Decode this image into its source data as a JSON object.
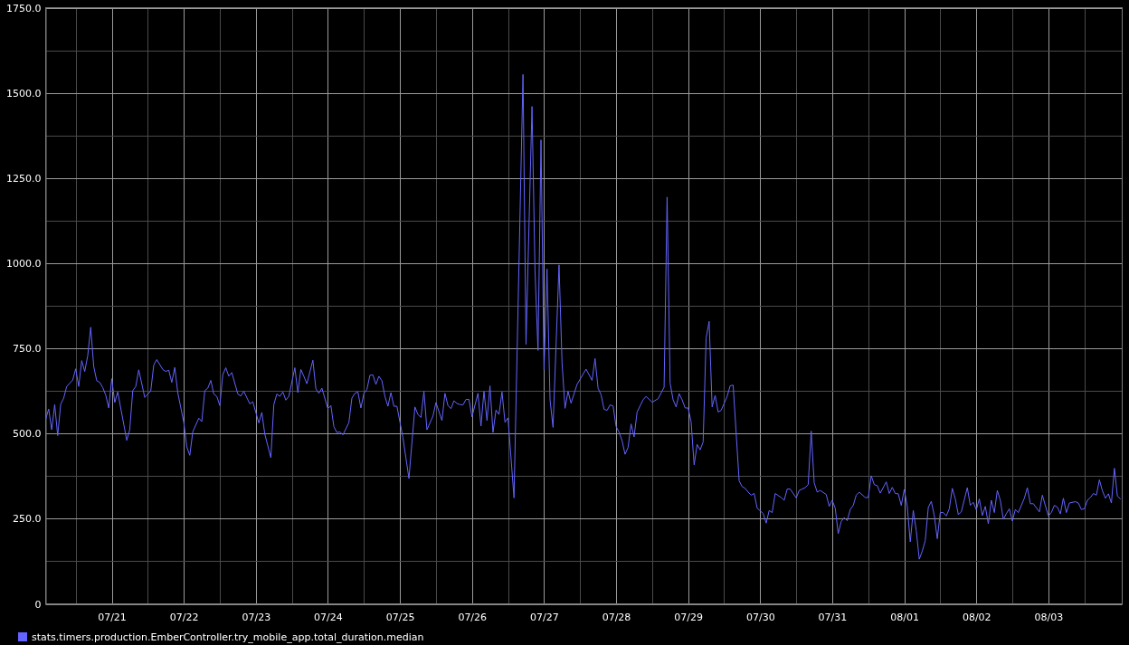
{
  "chart_data": {
    "type": "line",
    "x": [
      "--07-20T02:00",
      "--07-20T03:00",
      "--07-20T04:00",
      "--07-20T05:00",
      "--07-20T06:00",
      "--07-20T07:00",
      "--07-20T08:00",
      "--07-20T09:00",
      "--07-20T11:00",
      "--07-20T12:00",
      "--07-20T13:00",
      "--07-20T14:00",
      "--07-20T15:00",
      "--07-20T16:00",
      "--07-20T17:00",
      "--07-20T18:00",
      "--07-20T19:00",
      "--07-20T20:00",
      "--07-20T21:00",
      "--07-20T22:00",
      "--07-20T23:00",
      "--07-21T00:00",
      "--07-21T01:00",
      "--07-21T02:00",
      "--07-21T05:00",
      "--07-21T06:00",
      "--07-21T07:00",
      "--07-21T08:00",
      "--07-21T09:00",
      "--07-21T11:00",
      "--07-21T13:00",
      "--07-21T14:00",
      "--07-21T15:00",
      "--07-21T17:00",
      "--07-21T18:00",
      "--07-21T19:00",
      "--07-21T20:00",
      "--07-21T21:00",
      "--07-21T22:00",
      "--07-22T00:00",
      "--07-22T01:00",
      "--07-22T02:00",
      "--07-22T03:00",
      "--07-22T05:00",
      "--07-22T06:00",
      "--07-22T07:00",
      "--07-22T08:00",
      "--07-22T09:00",
      "--07-22T10:00",
      "--07-22T11:00",
      "--07-22T12:00",
      "--07-22T13:00",
      "--07-22T14:00",
      "--07-22T15:00",
      "--07-22T16:00",
      "--07-22T18:00",
      "--07-22T19:00",
      "--07-22T20:00",
      "--07-22T22:00",
      "--07-22T23:00",
      "--07-23T01:00",
      "--07-23T02:00",
      "--07-23T03:00",
      "--07-23T05:00",
      "--07-23T06:00",
      "--07-23T07:00",
      "--07-23T08:00",
      "--07-23T09:00",
      "--07-23T10:00",
      "--07-23T11:00",
      "--07-23T13:00",
      "--07-23T14:00",
      "--07-23T15:00",
      "--07-23T16:00",
      "--07-23T17:00",
      "--07-23T19:00",
      "--07-23T20:00",
      "--07-23T21:00",
      "--07-23T22:00",
      "--07-24T00:00",
      "--07-24T01:00",
      "--07-24T02:00",
      "--07-24T03:00",
      "--07-24T04:00",
      "--07-24T05:00",
      "--07-24T07:00",
      "--07-24T08:00",
      "--07-24T09:00",
      "--07-24T10:00",
      "--07-24T11:00",
      "--07-24T12:00",
      "--07-24T13:00",
      "--07-24T14:00",
      "--07-24T15:00",
      "--07-24T16:00",
      "--07-24T17:00",
      "--07-24T18:00",
      "--07-24T19:00",
      "--07-24T20:00",
      "--07-24T21:00",
      "--07-24T22:00",
      "--07-24T23:00",
      "--07-25T01:00",
      "--07-25T02:00",
      "--07-25T03:00",
      "--07-25T05:00",
      "--07-25T06:00",
      "--07-25T07:00",
      "--07-25T08:00",
      "--07-25T09:00",
      "--07-25T11:00",
      "--07-25T12:00",
      "--07-25T14:00",
      "--07-25T15:00",
      "--07-25T16:00",
      "--07-25T17:00",
      "--07-25T18:00",
      "--07-25T19:00",
      "--07-25T20:00",
      "--07-25T21:00",
      "--07-25T22:00",
      "--07-25T23:00",
      "--07-26T00:00",
      "--07-26T02:00",
      "--07-26T03:00",
      "--07-26T04:00",
      "--07-26T05:00",
      "--07-26T06:00",
      "--07-26T07:00",
      "--07-26T08:00",
      "--07-26T09:00",
      "--07-26T10:00",
      "--07-26T11:00",
      "--07-26T12:00",
      "--07-26T14:00",
      "--07-26T17:00",
      "--07-26T18:00",
      "--07-26T20:00",
      "--07-26T21:00",
      "--07-26T22:00",
      "--07-26T23:00",
      "--07-27T00:00",
      "--07-27T01:00",
      "--07-27T02:00",
      "--07-27T03:00",
      "--07-27T05:00",
      "--07-27T06:00",
      "--07-27T07:00",
      "--07-27T08:00",
      "--07-27T09:00",
      "--07-27T11:00",
      "--07-27T14:00",
      "--07-27T16:00",
      "--07-27T17:00",
      "--07-27T18:00",
      "--07-27T19:00",
      "--07-27T20:00",
      "--07-27T21:00",
      "--07-27T22:00",
      "--07-27T23:00",
      "--07-28T00:00",
      "--07-28T01:00",
      "--07-28T02:00",
      "--07-28T03:00",
      "--07-28T04:00",
      "--07-28T05:00",
      "--07-28T06:00",
      "--07-28T07:00",
      "--07-28T09:00",
      "--07-28T10:00",
      "--07-28T12:00",
      "--07-28T14:00",
      "--07-28T16:00",
      "--07-28T17:00",
      "--07-28T18:00",
      "--07-28T19:00",
      "--07-28T20:00",
      "--07-28T21:00",
      "--07-28T22:00",
      "--07-28T23:00",
      "--07-29T00:00",
      "--07-29T01:00",
      "--07-29T02:00",
      "--07-29T03:00",
      "--07-29T04:00",
      "--07-29T05:00",
      "--07-29T06:00",
      "--07-29T07:00",
      "--07-29T08:00",
      "--07-29T09:00",
      "--07-29T10:00",
      "--07-29T11:00",
      "--07-29T13:00",
      "--07-29T14:00",
      "--07-29T15:00",
      "--07-29T17:00",
      "--07-29T18:00",
      "--07-29T19:00",
      "--07-29T20:00",
      "--07-29T21:00",
      "--07-29T22:00",
      "--07-29T23:00",
      "--07-30T01:00",
      "--07-30T02:00",
      "--07-30T03:00",
      "--07-30T04:00",
      "--07-30T05:00",
      "--07-30T07:00",
      "--07-30T08:00",
      "--07-30T09:00",
      "--07-30T10:00",
      "--07-30T12:00",
      "--07-30T13:00",
      "--07-30T14:00",
      "--07-30T15:00",
      "--07-30T16:00",
      "--07-30T17:00",
      "--07-30T18:00",
      "--07-30T19:00",
      "--07-30T20:00",
      "--07-30T22:00",
      "--07-30T23:00",
      "--07-31T00:00",
      "--07-31T01:00",
      "--07-31T02:00",
      "--07-31T03:00",
      "--07-31T04:00",
      "--07-31T05:00",
      "--07-31T06:00",
      "--07-31T07:00",
      "--07-31T08:00",
      "--07-31T09:00",
      "--07-31T11:00",
      "--07-31T12:00",
      "--07-31T13:00",
      "--07-31T14:00",
      "--07-31T15:00",
      "--07-31T16:00",
      "--07-31T18:00",
      "--07-31T19:00",
      "--07-31T20:00",
      "--07-31T21:00",
      "--07-31T22:00",
      "--07-31T23:00",
      "--08-01T00:00",
      "--08-01T01:00",
      "--08-01T02:00",
      "--08-01T03:00",
      "--08-01T04:00",
      "--08-01T05:00",
      "--08-01T06:00",
      "--08-01T07:00",
      "--08-01T08:00",
      "--08-01T09:00",
      "--08-01T10:00",
      "--08-01T11:00",
      "--08-01T12:00",
      "--08-01T13:00",
      "--08-01T14:00",
      "--08-01T15:00",
      "--08-01T16:00",
      "--08-01T17:00",
      "--08-01T18:00",
      "--08-01T19:00",
      "--08-01T21:00",
      "--08-01T22:00",
      "--08-01T23:00",
      "--08-02T00:00",
      "--08-02T01:00",
      "--08-02T02:00",
      "--08-02T03:00",
      "--08-02T04:00",
      "--08-02T05:00",
      "--08-02T06:00",
      "--08-02T07:00",
      "--08-02T08:00",
      "--08-02T09:00",
      "--08-02T10:00",
      "--08-02T11:00",
      "--08-02T12:00",
      "--08-02T13:00",
      "--08-02T14:00",
      "--08-02T16:00",
      "--08-02T17:00",
      "--08-02T18:00",
      "--08-02T19:00",
      "--08-02T21:00",
      "--08-02T22:00",
      "--08-03T00:00",
      "--08-03T01:00",
      "--08-03T02:00",
      "--08-03T03:00",
      "--08-03T04:00",
      "--08-03T05:00",
      "--08-03T06:00",
      "--08-03T07:00",
      "--08-03T09:00",
      "--08-03T10:00",
      "--08-03T11:00",
      "--08-03T12:00",
      "--08-03T13:00",
      "--08-03T14:00",
      "--08-03T15:00",
      "--08-03T16:00",
      "--08-03T17:00",
      "--08-03T18:00",
      "--08-03T19:00",
      "--08-03T20:00",
      "--08-03T21:00",
      "--08-03T22:00",
      "--08-03T23:00",
      "--08-04T00:00"
    ],
    "series": [
      {
        "name": "stats.timers.production.EmberController.try_mobile_app.total_duration.median",
        "color": "#6464ff",
        "values": [
          542,
          572,
          511,
          585,
          494,
          586,
          604,
          638,
          657,
          690,
          638,
          714,
          682,
          728,
          812,
          697,
          655,
          650,
          635,
          613,
          575,
          661,
          591,
          622,
          480,
          511,
          626,
          638,
          687,
          606,
          625,
          701,
          717,
          688,
          682,
          686,
          650,
          694,
          620,
          533,
          461,
          436,
          505,
          545,
          535,
          626,
          633,
          656,
          616,
          609,
          582,
          673,
          693,
          668,
          679,
          616,
          610,
          624,
          587,
          593,
          531,
          562,
          498,
          429,
          585,
          616,
          609,
          622,
          598,
          609,
          693,
          620,
          688,
          668,
          646,
          715,
          631,
          618,
          633,
          573,
          582,
          520,
          503,
          505,
          496,
          532,
          604,
          618,
          622,
          575,
          618,
          629,
          671,
          672,
          644,
          668,
          655,
          609,
          580,
          620,
          580,
          580,
          488,
          428,
          368,
          578,
          556,
          547,
          624,
          511,
          551,
          591,
          538,
          618,
          582,
          573,
          596,
          588,
          585,
          584,
          600,
          600,
          549,
          618,
          522,
          624,
          538,
          640,
          503,
          569,
          556,
          622,
          533,
          546,
          311,
          1554,
          762,
          1460,
          976,
          744,
          1362,
          687,
          983,
          599,
          518,
          995,
          708,
          574,
          624,
          589,
          644,
          689,
          656,
          720,
          633,
          614,
          571,
          568,
          584,
          581,
          521,
          504,
          479,
          439,
          459,
          528,
          490,
          563,
          599,
          609,
          592,
          602,
          636,
          1194,
          648,
          599,
          578,
          617,
          599,
          575,
          575,
          534,
          408,
          468,
          452,
          475,
          780,
          829,
          578,
          612,
          563,
          568,
          609,
          640,
          642,
          361,
          344,
          339,
          328,
          319,
          324,
          281,
          265,
          237,
          274,
          268,
          324,
          312,
          304,
          337,
          337,
          311,
          333,
          337,
          341,
          350,
          507,
          355,
          328,
          333,
          321,
          286,
          304,
          281,
          206,
          242,
          253,
          244,
          277,
          289,
          319,
          328,
          312,
          312,
          376,
          350,
          347,
          325,
          358,
          324,
          342,
          324,
          323,
          289,
          336,
          286,
          182,
          274,
          215,
          131,
          155,
          186,
          283,
          301,
          259,
          191,
          268,
          268,
          258,
          279,
          339,
          308,
          262,
          270,
          341,
          289,
          298,
          276,
          308,
          259,
          286,
          235,
          304,
          268,
          333,
          304,
          248,
          265,
          279,
          243,
          277,
          268,
          310,
          341,
          294,
          294,
          270,
          319,
          258,
          268,
          289,
          284,
          264,
          310,
          268,
          296,
          300,
          296,
          277,
          279,
          304,
          312,
          324,
          319,
          364,
          332,
          310,
          323,
          296,
          398,
          316,
          308
        ]
      }
    ],
    "xlim": [
      "--07-20T02:00",
      "--08-04T00:36"
    ],
    "xticks": [
      {
        "value": "--07-21",
        "label": "07/21"
      },
      {
        "value": "--07-22",
        "label": "07/22"
      },
      {
        "value": "--07-23",
        "label": "07/23"
      },
      {
        "value": "--07-24",
        "label": "07/24"
      },
      {
        "value": "--07-25",
        "label": "07/25"
      },
      {
        "value": "--07-26",
        "label": "07/26"
      },
      {
        "value": "--07-27",
        "label": "07/27"
      },
      {
        "value": "--07-28",
        "label": "07/28"
      },
      {
        "value": "--07-29",
        "label": "07/29"
      },
      {
        "value": "--07-30",
        "label": "07/30"
      },
      {
        "value": "--07-31",
        "label": "07/31"
      },
      {
        "value": "--08-01",
        "label": "08/01"
      },
      {
        "value": "--08-02",
        "label": "08/02"
      },
      {
        "value": "--08-03",
        "label": "08/03"
      }
    ],
    "ylim": [
      0,
      1750
    ],
    "yticks": [
      0,
      {
        "value": 250,
        "label": "250.0"
      },
      {
        "value": 500,
        "label": "500.0"
      },
      {
        "value": 750,
        "label": "750.0"
      },
      {
        "value": 1000,
        "label": "1000.0"
      },
      {
        "value": 1250,
        "label": "1250.0"
      },
      {
        "value": 1500,
        "label": "1500.0"
      },
      {
        "value": 1750,
        "label": "1750.0"
      }
    ],
    "grid": true,
    "legend": "bottom left"
  }
}
